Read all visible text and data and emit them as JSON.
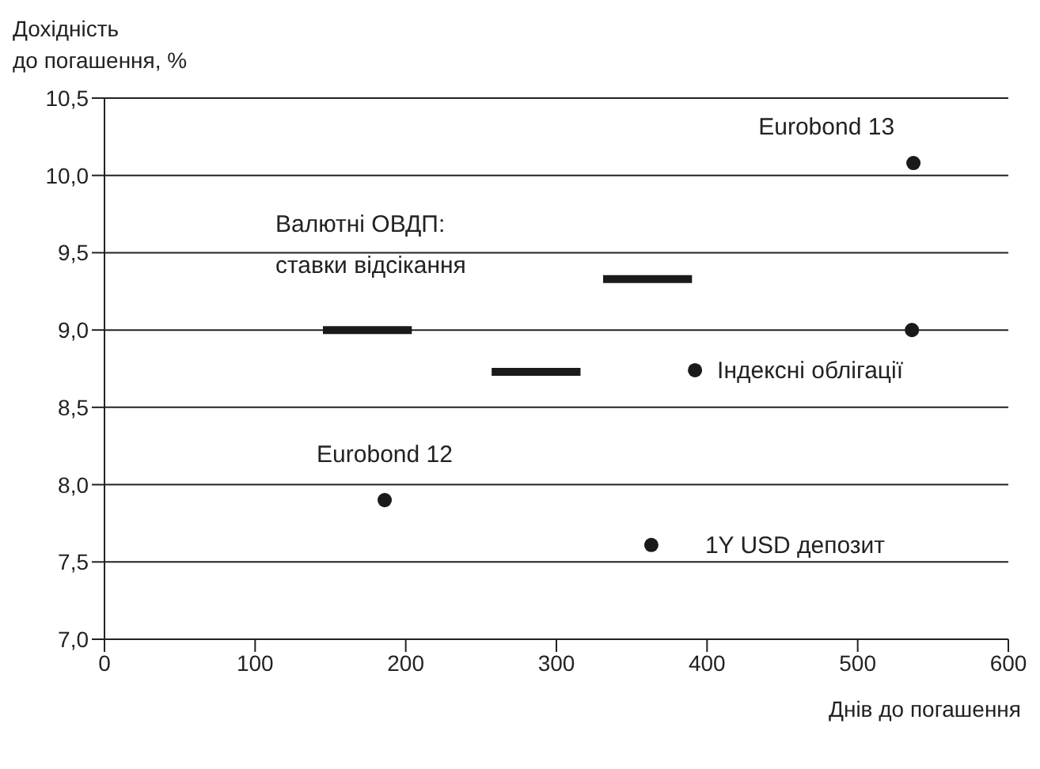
{
  "chart_data": {
    "type": "scatter",
    "xlabel": "Днів до погашення",
    "ylabel": "Дохідність\nдо погашення, %",
    "x": [
      537,
      536,
      392,
      186,
      363
    ],
    "values": [
      10.08,
      9.0,
      8.74,
      7.9,
      7.61
    ],
    "color": "#1a1a1a",
    "marker": "circle",
    "series": [
      {
        "type": "line",
        "x": [
          145,
          204
        ],
        "values": [
          9.0,
          9.0
        ],
        "color": "#1a1a1a",
        "marker": "none"
      },
      {
        "type": "line",
        "x": [
          257,
          316
        ],
        "values": [
          8.73,
          8.73
        ],
        "color": "#1a1a1a",
        "marker": "none"
      },
      {
        "type": "line",
        "x": [
          331,
          390
        ],
        "values": [
          9.33,
          9.33
        ],
        "color": "#1a1a1a",
        "marker": "none"
      }
    ],
    "annotations": [
      {
        "text": "Eurobond 13",
        "x": 537,
        "y": 10.08
      },
      {
        "text": "Індексні облігації",
        "x": 392,
        "y": 8.74
      },
      {
        "text": "Eurobond 12",
        "x": 186,
        "y": 7.9
      },
      {
        "text": "1Y USD депозит",
        "x": 363,
        "y": 7.61
      },
      {
        "text": "Валютні ОВДП:\nставки відсікання",
        "x": 145,
        "y": 9.0
      }
    ],
    "xlim": [
      0,
      600
    ],
    "xticks": [
      0,
      100,
      200,
      300,
      400,
      500,
      600
    ],
    "ylim": [
      7.0,
      10.5
    ],
    "yticks": [
      {
        "value": 7.0,
        "label": "7,0"
      },
      {
        "value": 7.5,
        "label": "7,5"
      },
      {
        "value": 8.0,
        "label": "8,0"
      },
      {
        "value": 8.5,
        "label": "8,5"
      },
      {
        "value": 9.0,
        "label": "9,0"
      },
      {
        "value": 9.5,
        "label": "9,5"
      },
      {
        "value": 10.0,
        "label": "10,0"
      },
      {
        "value": 10.5,
        "label": "10,5"
      }
    ],
    "grid": "y"
  }
}
